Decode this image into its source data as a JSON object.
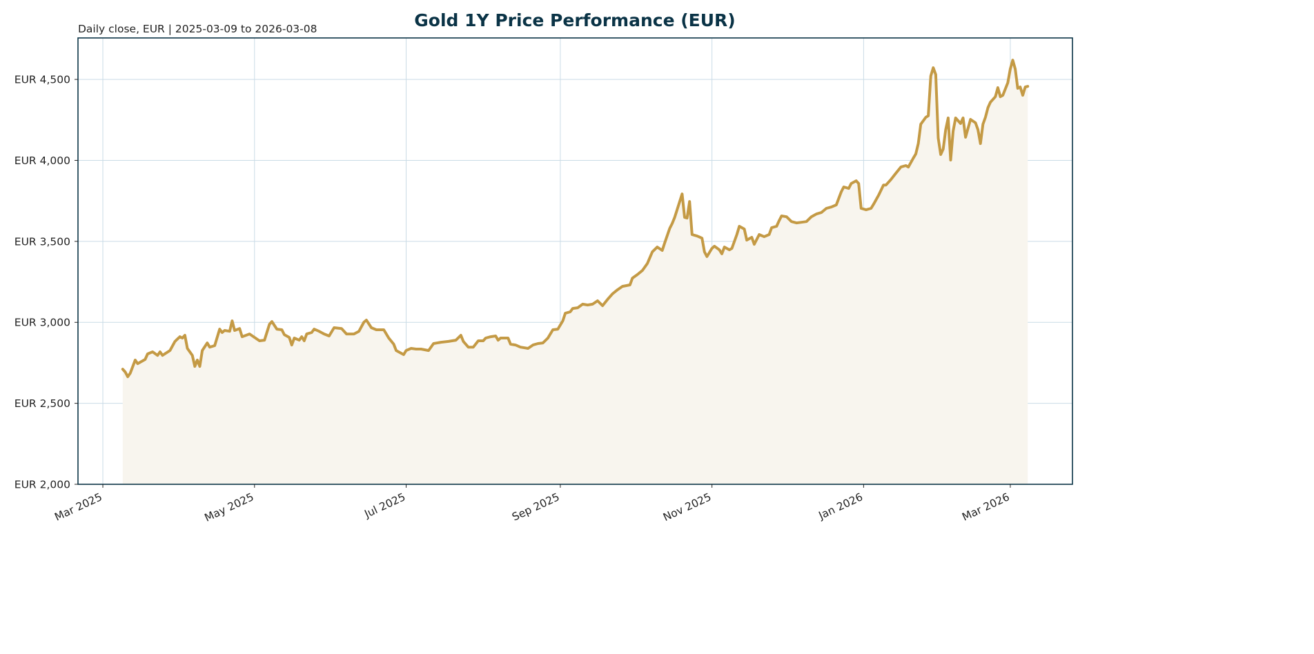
{
  "chart_data": {
    "type": "area",
    "title": "Gold 1Y Price Performance (EUR)",
    "subtitle": "Daily close, EUR | 2025-03-09 to 2026-03-08",
    "xlabel": "",
    "ylabel": "",
    "ylim": [
      2000,
      4756
    ],
    "xlim": [
      "2025-02-19",
      "2026-03-26"
    ],
    "grid": true,
    "y_ticks": [
      2000,
      2500,
      3000,
      3500,
      4000,
      4500
    ],
    "y_tick_labels": [
      "EUR 2,000",
      "EUR 2,500",
      "EUR 3,000",
      "EUR 3,500",
      "EUR 4,000",
      "EUR 4,500"
    ],
    "x_ticks": [
      "2025-03-01",
      "2025-05-01",
      "2025-07-01",
      "2025-09-01",
      "2025-11-01",
      "2026-01-01",
      "2026-03-01"
    ],
    "x_tick_labels": [
      "Mar 2025",
      "May 2025",
      "Jul 2025",
      "Sep 2025",
      "Nov 2025",
      "Jan 2026",
      "Mar 2026"
    ],
    "colors": {
      "line": "#c49a45",
      "fill": "#f8f5ee",
      "title": "#0a3346",
      "axes": "#0a3346",
      "grid": "#c9dbe6"
    },
    "x": [
      "2025-03-09",
      "2025-03-10",
      "2025-03-11",
      "2025-03-12",
      "2025-03-14",
      "2025-03-15",
      "2025-03-18",
      "2025-03-19",
      "2025-03-21",
      "2025-03-23",
      "2025-03-24",
      "2025-03-25",
      "2025-03-28",
      "2025-03-30",
      "2025-04-01",
      "2025-04-02",
      "2025-04-03",
      "2025-04-04",
      "2025-04-06",
      "2025-04-07",
      "2025-04-08",
      "2025-04-09",
      "2025-04-10",
      "2025-04-12",
      "2025-04-13",
      "2025-04-15",
      "2025-04-17",
      "2025-04-18",
      "2025-04-19",
      "2025-04-21",
      "2025-04-22",
      "2025-04-23",
      "2025-04-25",
      "2025-04-26",
      "2025-04-29",
      "2025-05-03",
      "2025-05-05",
      "2025-05-07",
      "2025-05-08",
      "2025-05-10",
      "2025-05-12",
      "2025-05-13",
      "2025-05-15",
      "2025-05-16",
      "2025-05-17",
      "2025-05-19",
      "2025-05-20",
      "2025-05-21",
      "2025-05-22",
      "2025-05-24",
      "2025-05-25",
      "2025-05-27",
      "2025-05-29",
      "2025-05-31",
      "2025-06-02",
      "2025-06-05",
      "2025-06-07",
      "2025-06-10",
      "2025-06-12",
      "2025-06-14",
      "2025-06-15",
      "2025-06-17",
      "2025-06-19",
      "2025-06-22",
      "2025-06-24",
      "2025-06-26",
      "2025-06-27",
      "2025-06-30",
      "2025-07-01",
      "2025-07-03",
      "2025-07-05",
      "2025-07-07",
      "2025-07-10",
      "2025-07-12",
      "2025-07-15",
      "2025-07-18",
      "2025-07-21",
      "2025-07-23",
      "2025-07-24",
      "2025-07-26",
      "2025-07-28",
      "2025-07-30",
      "2025-08-01",
      "2025-08-02",
      "2025-08-04",
      "2025-08-06",
      "2025-08-07",
      "2025-08-08",
      "2025-08-11",
      "2025-08-12",
      "2025-08-14",
      "2025-08-16",
      "2025-08-19",
      "2025-08-21",
      "2025-08-23",
      "2025-08-25",
      "2025-08-27",
      "2025-08-29",
      "2025-08-31",
      "2025-09-02",
      "2025-09-03",
      "2025-09-05",
      "2025-09-06",
      "2025-09-08",
      "2025-09-10",
      "2025-09-12",
      "2025-09-14",
      "2025-09-16",
      "2025-09-18",
      "2025-09-20",
      "2025-09-22",
      "2025-09-24",
      "2025-09-26",
      "2025-09-29",
      "2025-09-30",
      "2025-10-02",
      "2025-10-04",
      "2025-10-06",
      "2025-10-08",
      "2025-10-10",
      "2025-10-12",
      "2025-10-13",
      "2025-10-15",
      "2025-10-16",
      "2025-10-17",
      "2025-10-20",
      "2025-10-21",
      "2025-10-22",
      "2025-10-23",
      "2025-10-24",
      "2025-10-26",
      "2025-10-28",
      "2025-10-29",
      "2025-10-30",
      "2025-11-01",
      "2025-11-02",
      "2025-11-04",
      "2025-11-05",
      "2025-11-06",
      "2025-11-08",
      "2025-11-09",
      "2025-11-11",
      "2025-11-12",
      "2025-11-14",
      "2025-11-15",
      "2025-11-17",
      "2025-11-18",
      "2025-11-20",
      "2025-11-22",
      "2025-11-24",
      "2025-11-25",
      "2025-11-27",
      "2025-11-28",
      "2025-11-29",
      "2025-12-01",
      "2025-12-03",
      "2025-12-05",
      "2025-12-07",
      "2025-12-09",
      "2025-12-11",
      "2025-12-13",
      "2025-12-15",
      "2025-12-17",
      "2025-12-19",
      "2025-12-21",
      "2025-12-23",
      "2025-12-24",
      "2025-12-26",
      "2025-12-27",
      "2025-12-29",
      "2025-12-30",
      "2025-12-31",
      "2026-01-02",
      "2026-01-04",
      "2026-01-05",
      "2026-01-07",
      "2026-01-09",
      "2026-01-10",
      "2026-01-12",
      "2026-01-14",
      "2026-01-16",
      "2026-01-18",
      "2026-01-19",
      "2026-01-21",
      "2026-01-22",
      "2026-01-23",
      "2026-01-24",
      "2026-01-26",
      "2026-01-27",
      "2026-01-28",
      "2026-01-29",
      "2026-01-30",
      "2026-01-31",
      "2026-02-01",
      "2026-02-02",
      "2026-02-03",
      "2026-02-04",
      "2026-02-05",
      "2026-02-06",
      "2026-02-07",
      "2026-02-09",
      "2026-02-10",
      "2026-02-11",
      "2026-02-13",
      "2026-02-15",
      "2026-02-16",
      "2026-02-17",
      "2026-02-18",
      "2026-02-19",
      "2026-02-20",
      "2026-02-21",
      "2026-02-23",
      "2026-02-24",
      "2026-02-25",
      "2026-02-26",
      "2026-02-28",
      "2026-03-01",
      "2026-03-02",
      "2026-03-03",
      "2026-03-04",
      "2026-03-05",
      "2026-03-06",
      "2026-03-07",
      "2026-03-08"
    ],
    "y": [
      2711,
      2694,
      2664,
      2686,
      2767,
      2745,
      2771,
      2805,
      2818,
      2796,
      2818,
      2796,
      2826,
      2882,
      2911,
      2903,
      2920,
      2839,
      2796,
      2728,
      2767,
      2728,
      2826,
      2873,
      2847,
      2856,
      2958,
      2937,
      2950,
      2945,
      3009,
      2950,
      2962,
      2911,
      2928,
      2886,
      2890,
      2988,
      3005,
      2958,
      2954,
      2924,
      2907,
      2860,
      2903,
      2890,
      2911,
      2886,
      2928,
      2937,
      2958,
      2945,
      2928,
      2916,
      2967,
      2962,
      2928,
      2928,
      2945,
      3001,
      3014,
      2967,
      2954,
      2954,
      2903,
      2865,
      2826,
      2801,
      2826,
      2839,
      2835,
      2835,
      2826,
      2869,
      2877,
      2882,
      2890,
      2920,
      2882,
      2847,
      2847,
      2886,
      2886,
      2903,
      2911,
      2916,
      2890,
      2903,
      2903,
      2865,
      2860,
      2847,
      2839,
      2860,
      2869,
      2873,
      2903,
      2954,
      2958,
      3009,
      3056,
      3065,
      3086,
      3090,
      3112,
      3107,
      3112,
      3133,
      3103,
      3141,
      3176,
      3201,
      3222,
      3231,
      3273,
      3295,
      3320,
      3363,
      3435,
      3465,
      3444,
      3491,
      3580,
      3610,
      3648,
      3793,
      3648,
      3644,
      3746,
      3542,
      3533,
      3520,
      3435,
      3406,
      3457,
      3470,
      3448,
      3423,
      3465,
      3448,
      3457,
      3542,
      3593,
      3576,
      3508,
      3525,
      3482,
      3542,
      3529,
      3542,
      3584,
      3593,
      3627,
      3657,
      3652,
      3622,
      3614,
      3618,
      3622,
      3652,
      3669,
      3678,
      3704,
      3712,
      3725,
      3806,
      3836,
      3827,
      3857,
      3874,
      3857,
      3704,
      3695,
      3704,
      3729,
      3784,
      3848,
      3848,
      3882,
      3921,
      3959,
      3968,
      3959,
      4014,
      4040,
      4104,
      4223,
      4266,
      4275,
      4521,
      4572,
      4530,
      4138,
      4036,
      4070,
      4189,
      4262,
      4002,
      4181,
      4262,
      4228,
      4262,
      4143,
      4253,
      4232,
      4189,
      4104,
      4223,
      4266,
      4325,
      4359,
      4393,
      4449,
      4393,
      4402,
      4479,
      4564,
      4619,
      4564,
      4445,
      4453,
      4402,
      4453,
      4457
    ]
  }
}
